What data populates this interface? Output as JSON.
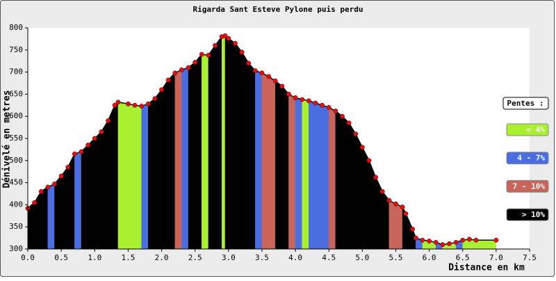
{
  "chart_data": {
    "type": "area",
    "title": "Rigarda Sant Esteve Pylone puis perdu",
    "x_label": "Distance en km",
    "y_label": "Dénivelé en metres",
    "x": [
      0.0,
      0.1,
      0.2,
      0.3,
      0.4,
      0.5,
      0.6,
      0.7,
      0.8,
      0.9,
      1.0,
      1.1,
      1.2,
      1.3,
      1.35,
      1.5,
      1.6,
      1.7,
      1.8,
      1.9,
      2.0,
      2.1,
      2.2,
      2.3,
      2.4,
      2.5,
      2.6,
      2.7,
      2.8,
      2.9,
      2.95,
      3.0,
      3.1,
      3.2,
      3.3,
      3.4,
      3.5,
      3.6,
      3.7,
      3.8,
      3.9,
      4.0,
      4.1,
      4.2,
      4.3,
      4.4,
      4.5,
      4.6,
      4.7,
      4.8,
      4.9,
      5.0,
      5.1,
      5.2,
      5.3,
      5.4,
      5.5,
      5.6,
      5.65,
      5.75,
      5.8,
      5.9,
      6.0,
      6.1,
      6.2,
      6.3,
      6.4,
      6.5,
      6.6,
      6.7,
      7.0
    ],
    "values": [
      392,
      405,
      430,
      440,
      447,
      465,
      485,
      515,
      520,
      535,
      550,
      565,
      590,
      625,
      632,
      628,
      625,
      623,
      628,
      640,
      660,
      682,
      698,
      705,
      710,
      722,
      740,
      738,
      760,
      780,
      782,
      776,
      765,
      745,
      720,
      703,
      698,
      690,
      680,
      668,
      650,
      642,
      638,
      635,
      630,
      625,
      620,
      612,
      600,
      585,
      560,
      530,
      500,
      462,
      430,
      410,
      402,
      395,
      380,
      345,
      325,
      320,
      318,
      315,
      310,
      312,
      315,
      320,
      322,
      320,
      320
    ],
    "line_color": "#000000",
    "point_color": "#dd1111",
    "xlim": [
      0,
      7.5
    ],
    "xticks": [
      {
        "value": 0,
        "label": "0.0"
      },
      0.5,
      {
        "value": 1,
        "label": "1.0"
      },
      1.5,
      {
        "value": 2,
        "label": "2.0"
      },
      2.5,
      {
        "value": 3,
        "label": "3.0"
      },
      3.5,
      {
        "value": 4,
        "label": "4.0"
      },
      4.5,
      {
        "value": 5,
        "label": "5.0"
      },
      5.5,
      {
        "value": 6,
        "label": "6.0"
      },
      6.5,
      {
        "value": 7,
        "label": "7.0"
      },
      7.5
    ],
    "ylim": [
      300,
      800
    ],
    "yticks": [
      300,
      350,
      400,
      450,
      500,
      550,
      600,
      650,
      700,
      750,
      800
    ],
    "legend": {
      "title": "Pentes :",
      "thresholds": [
        4,
        7,
        10
      ],
      "classes": [
        {
          "label": "< 4%",
          "color": "#a8f030"
        },
        {
          "label": "4 - 7%",
          "color": "#4a6ee0"
        },
        {
          "label": "7 - 10%",
          "color": "#c8645a"
        },
        {
          "label": "> 10%",
          "color": "#000000"
        }
      ]
    }
  }
}
